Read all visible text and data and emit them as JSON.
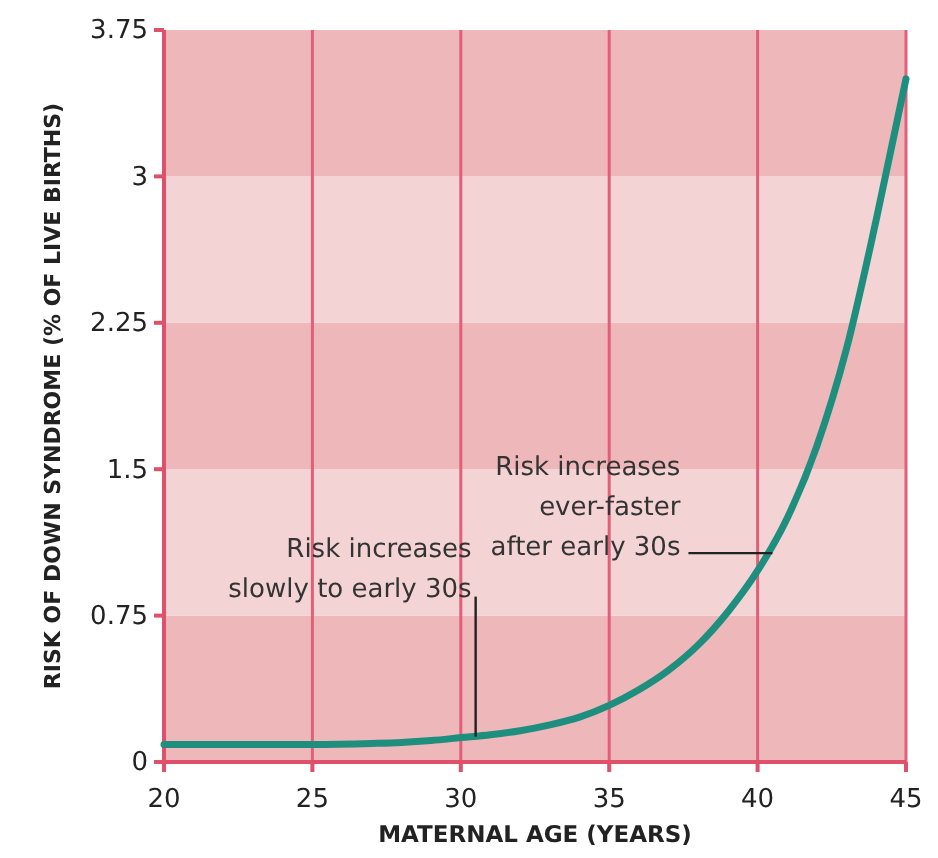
{
  "chart_data": {
    "type": "line",
    "xlabel": "MATERNAL AGE (YEARS)",
    "ylabel": "RISK OF DOWN SYNDROME (% OF LIVE BIRTHS)",
    "x": [
      20,
      22,
      25,
      27,
      28,
      29,
      30,
      31,
      32,
      33,
      34,
      35,
      36,
      37,
      38,
      39,
      40,
      41,
      42,
      43,
      44,
      45
    ],
    "series": [
      {
        "color": "#1e8f7f",
        "values": [
          0.09,
          0.09,
          0.09,
          0.095,
          0.1,
          0.11,
          0.125,
          0.14,
          0.16,
          0.19,
          0.23,
          0.29,
          0.37,
          0.47,
          0.6,
          0.77,
          0.98,
          1.25,
          1.62,
          2.12,
          2.78,
          3.5
        ]
      }
    ],
    "xlim": [
      20,
      45
    ],
    "xticks": [
      20,
      25,
      30,
      35,
      40,
      45
    ],
    "ylim": [
      0,
      3.75
    ],
    "yticks": [
      0,
      0.75,
      1.5,
      2.25,
      3,
      3.75
    ],
    "grid": "x",
    "bands": [
      {
        "axis": "y",
        "from": 0,
        "to": 0.75,
        "color": "#eeb8ba"
      },
      {
        "axis": "y",
        "from": 0.75,
        "to": 1.5,
        "color": "#f3d3d3"
      },
      {
        "axis": "y",
        "from": 1.5,
        "to": 2.25,
        "color": "#eeb8ba"
      },
      {
        "axis": "y",
        "from": 2.25,
        "to": 3,
        "color": "#f3d3d3"
      },
      {
        "axis": "y",
        "from": 3,
        "to": 3.75,
        "color": "#eeb8ba"
      }
    ],
    "annotations": [
      {
        "text": "Risk increases\nslowly to early 30s",
        "x": 30.5,
        "y": 0.13
      },
      {
        "text": "Risk increases\never-faster\nafter early 30s",
        "x": 40.5,
        "y": 1.07
      }
    ]
  }
}
